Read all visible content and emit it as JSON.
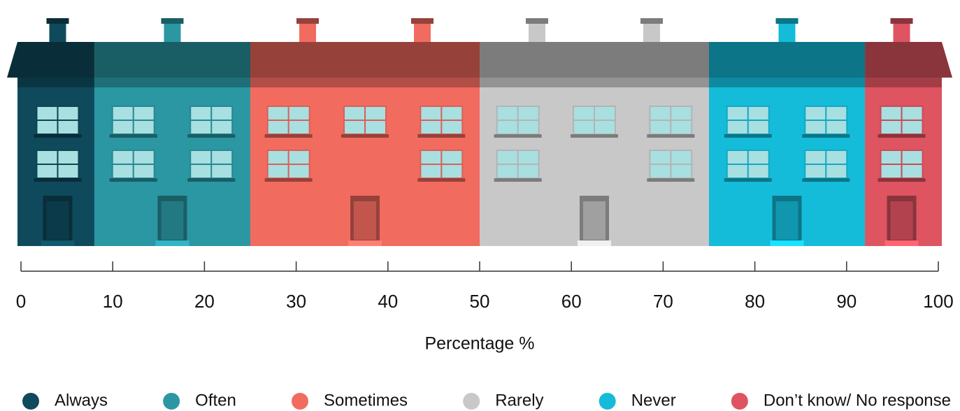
{
  "chart_data": {
    "type": "bar",
    "orientation": "horizontal",
    "stacked": true,
    "xlabel": "Percentage %",
    "series": [
      {
        "name": "Always",
        "color": "#0e4a5c",
        "values": [
          8
        ]
      },
      {
        "name": "Often",
        "color": "#2a97a3",
        "values": [
          17
        ]
      },
      {
        "name": "Sometimes",
        "color": "#f26b5f",
        "values": [
          25
        ]
      },
      {
        "name": "Rarely",
        "color": "#c8c8c8",
        "values": [
          25
        ]
      },
      {
        "name": "Never",
        "color": "#14bcd9",
        "values": [
          17
        ]
      },
      {
        "name": "Don’t know/ No response",
        "color": "#de5461",
        "values": [
          8
        ]
      }
    ],
    "xlim": [
      0,
      100
    ],
    "xticks": [
      0,
      10,
      20,
      30,
      40,
      50,
      60,
      70,
      80,
      90,
      100
    ],
    "legend": "bottom"
  }
}
